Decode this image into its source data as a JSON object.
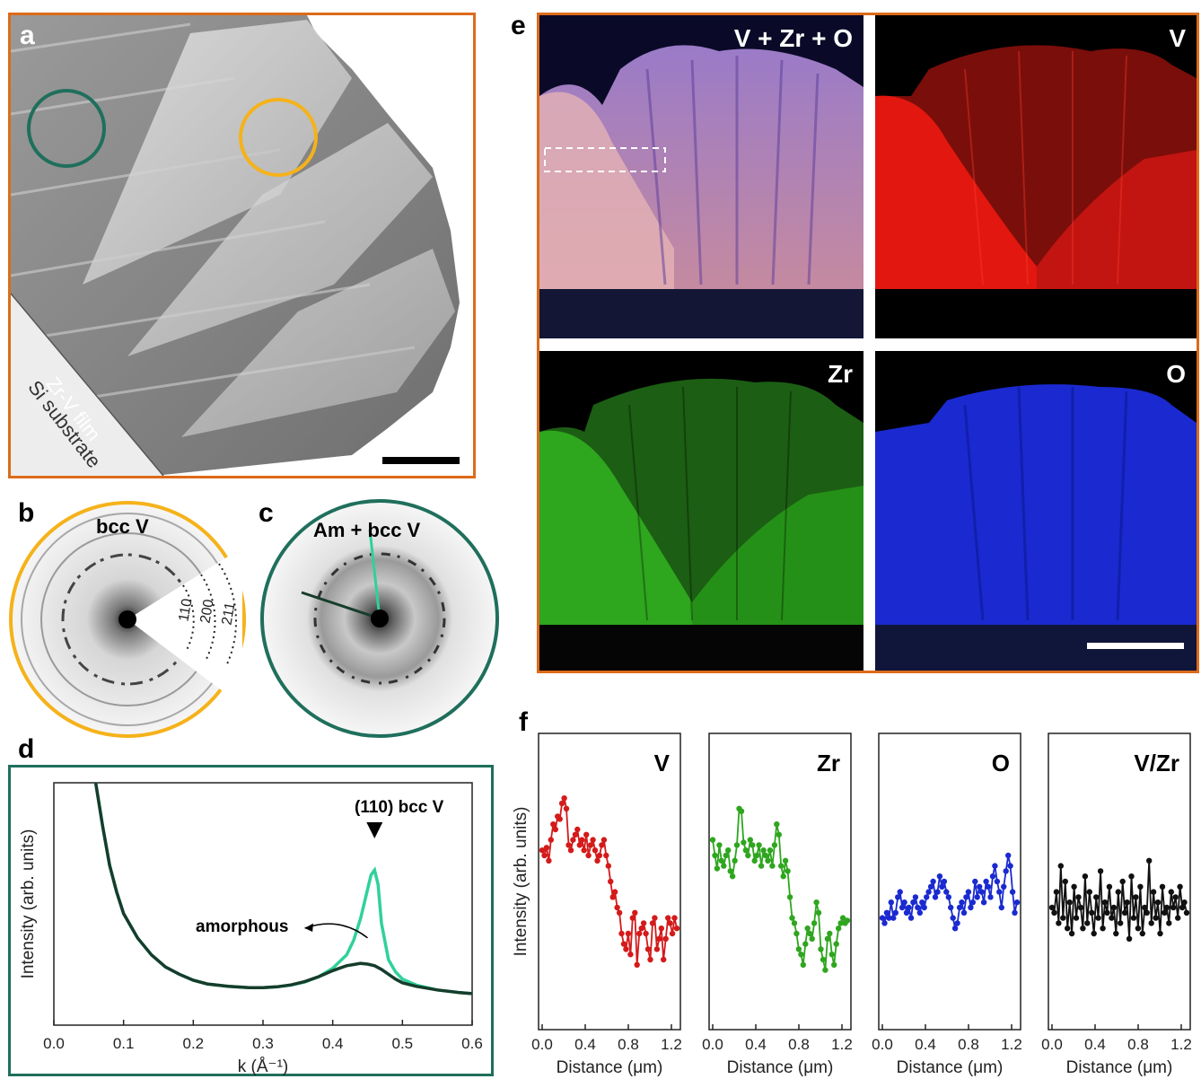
{
  "panels": {
    "a": {
      "label": "a",
      "film_label": "Zr-V film",
      "substrate_label": "Si substrate"
    },
    "b": {
      "label": "b",
      "title": "bcc V",
      "rings": [
        "110",
        "200",
        "211"
      ]
    },
    "c": {
      "label": "c",
      "title": "Am + bcc V"
    },
    "d": {
      "label": "d",
      "peak_label": "(110) bcc V",
      "amorphous_label": "amorphous"
    },
    "e": {
      "label": "e",
      "maps": [
        {
          "title": "V + Zr + O",
          "color": "#b47aa8"
        },
        {
          "title": "V",
          "color": "#e01a12"
        },
        {
          "title": "Zr",
          "color": "#2ea61e"
        },
        {
          "title": "O",
          "color": "#1a2ad0"
        }
      ]
    },
    "f": {
      "label": "f"
    }
  },
  "colors": {
    "orange_frame": "#dd6b1a",
    "teal_frame": "#1f6f5c",
    "yellow_circle": "#f5b21a",
    "teal_circle": "#1f6f5c",
    "crystalline_line": "#2fd19a",
    "amorphous_line": "#163d2c"
  },
  "chart_data": [
    {
      "type": "line",
      "panel": "d",
      "title": "",
      "xlabel": "k (Å⁻¹)",
      "ylabel": "Intensity (arb. units)",
      "xlim": [
        0.0,
        0.6
      ],
      "xticks": [
        "0.0",
        "0.1",
        "0.2",
        "0.3",
        "0.4",
        "0.5",
        "0.6"
      ],
      "annotations": [
        "(110) bcc V",
        "amorphous"
      ],
      "series": [
        {
          "color": "#2fd19a",
          "x": [
            0.06,
            0.07,
            0.08,
            0.09,
            0.1,
            0.12,
            0.14,
            0.16,
            0.18,
            0.2,
            0.22,
            0.25,
            0.28,
            0.3,
            0.32,
            0.34,
            0.36,
            0.38,
            0.4,
            0.42,
            0.43,
            0.44,
            0.45,
            0.455,
            0.46,
            0.465,
            0.47,
            0.48,
            0.49,
            0.5,
            0.52,
            0.55,
            0.58,
            0.6
          ],
          "y": [
            1.0,
            0.82,
            0.66,
            0.55,
            0.46,
            0.36,
            0.29,
            0.24,
            0.21,
            0.185,
            0.17,
            0.16,
            0.155,
            0.155,
            0.158,
            0.165,
            0.178,
            0.2,
            0.235,
            0.29,
            0.35,
            0.44,
            0.56,
            0.62,
            0.64,
            0.58,
            0.42,
            0.27,
            0.22,
            0.19,
            0.165,
            0.145,
            0.135,
            0.13
          ]
        },
        {
          "color": "#163d2c",
          "x": [
            0.06,
            0.07,
            0.08,
            0.09,
            0.1,
            0.12,
            0.14,
            0.16,
            0.18,
            0.2,
            0.22,
            0.25,
            0.28,
            0.3,
            0.32,
            0.34,
            0.36,
            0.38,
            0.4,
            0.42,
            0.43,
            0.44,
            0.45,
            0.46,
            0.47,
            0.48,
            0.49,
            0.5,
            0.52,
            0.55,
            0.58,
            0.6
          ],
          "y": [
            1.0,
            0.82,
            0.66,
            0.55,
            0.46,
            0.36,
            0.29,
            0.24,
            0.21,
            0.185,
            0.17,
            0.16,
            0.155,
            0.155,
            0.158,
            0.166,
            0.18,
            0.2,
            0.225,
            0.245,
            0.25,
            0.255,
            0.252,
            0.245,
            0.23,
            0.21,
            0.19,
            0.175,
            0.16,
            0.145,
            0.135,
            0.13
          ]
        }
      ]
    },
    {
      "type": "line",
      "panel": "f",
      "title": "V",
      "xlabel": "Distance (μm)",
      "ylabel": "Intensity (arb. units)",
      "xlim": [
        0.0,
        1.25
      ],
      "xticks": [
        "0.0",
        "0.4",
        "0.8",
        "1.2"
      ],
      "series": [
        {
          "name": "V",
          "color": "#d41a1a",
          "values": [
            0.62,
            0.6,
            0.63,
            0.58,
            0.66,
            0.72,
            0.7,
            0.75,
            0.74,
            0.8,
            0.82,
            0.78,
            0.64,
            0.62,
            0.66,
            0.68,
            0.7,
            0.64,
            0.66,
            0.62,
            0.68,
            0.6,
            0.64,
            0.66,
            0.62,
            0.58,
            0.6,
            0.64,
            0.66,
            0.6,
            0.56,
            0.5,
            0.44,
            0.46,
            0.4,
            0.38,
            0.3,
            0.26,
            0.24,
            0.3,
            0.22,
            0.36,
            0.38,
            0.18,
            0.3,
            0.32,
            0.34,
            0.3,
            0.24,
            0.2,
            0.34,
            0.36,
            0.24,
            0.28,
            0.32,
            0.2,
            0.28,
            0.36,
            0.34,
            0.3,
            0.36,
            0.32
          ]
        }
      ]
    },
    {
      "type": "line",
      "panel": "f",
      "title": "Zr",
      "xlabel": "Distance (μm)",
      "xlim": [
        0.0,
        1.25
      ],
      "xticks": [
        "0.0",
        "0.4",
        "0.8",
        "1.2"
      ],
      "series": [
        {
          "name": "Zr",
          "color": "#2ea61e",
          "values": [
            0.66,
            0.6,
            0.55,
            0.64,
            0.58,
            0.56,
            0.6,
            0.62,
            0.54,
            0.52,
            0.58,
            0.64,
            0.78,
            0.77,
            0.65,
            0.62,
            0.6,
            0.66,
            0.64,
            0.58,
            0.6,
            0.64,
            0.56,
            0.62,
            0.6,
            0.58,
            0.62,
            0.56,
            0.64,
            0.72,
            0.68,
            0.56,
            0.52,
            0.58,
            0.54,
            0.44,
            0.36,
            0.34,
            0.3,
            0.24,
            0.22,
            0.18,
            0.26,
            0.32,
            0.3,
            0.28,
            0.34,
            0.42,
            0.38,
            0.24,
            0.2,
            0.16,
            0.28,
            0.3,
            0.22,
            0.18,
            0.26,
            0.32,
            0.34,
            0.36,
            0.34,
            0.35
          ]
        }
      ]
    },
    {
      "type": "line",
      "panel": "f",
      "title": "O",
      "xlabel": "Distance (μm)",
      "xlim": [
        0.0,
        1.25
      ],
      "xticks": [
        "0.0",
        "0.4",
        "0.8",
        "1.2"
      ],
      "series": [
        {
          "name": "O",
          "color": "#1a2ad0",
          "values": [
            0.36,
            0.34,
            0.38,
            0.36,
            0.42,
            0.36,
            0.38,
            0.44,
            0.46,
            0.4,
            0.42,
            0.38,
            0.4,
            0.36,
            0.42,
            0.44,
            0.4,
            0.38,
            0.42,
            0.4,
            0.44,
            0.46,
            0.48,
            0.5,
            0.44,
            0.46,
            0.52,
            0.48,
            0.5,
            0.46,
            0.44,
            0.4,
            0.36,
            0.32,
            0.34,
            0.4,
            0.42,
            0.38,
            0.44,
            0.46,
            0.4,
            0.42,
            0.5,
            0.44,
            0.48,
            0.46,
            0.42,
            0.5,
            0.48,
            0.44,
            0.52,
            0.56,
            0.5,
            0.46,
            0.4,
            0.48,
            0.54,
            0.6,
            0.56,
            0.46,
            0.38,
            0.42
          ]
        }
      ]
    },
    {
      "type": "line",
      "panel": "f",
      "title": "V/Zr",
      "xlabel": "Distance (μm)",
      "xlim": [
        0.0,
        1.25
      ],
      "xticks": [
        "0.0",
        "0.4",
        "0.8",
        "1.2"
      ],
      "series": [
        {
          "name": "V/Zr",
          "color": "#111111",
          "values": [
            0.4,
            0.38,
            0.46,
            0.34,
            0.56,
            0.36,
            0.5,
            0.32,
            0.42,
            0.3,
            0.48,
            0.36,
            0.44,
            0.4,
            0.32,
            0.52,
            0.34,
            0.46,
            0.38,
            0.3,
            0.44,
            0.36,
            0.54,
            0.32,
            0.42,
            0.38,
            0.48,
            0.36,
            0.4,
            0.3,
            0.46,
            0.34,
            0.5,
            0.38,
            0.42,
            0.28,
            0.52,
            0.36,
            0.44,
            0.32,
            0.48,
            0.3,
            0.4,
            0.38,
            0.58,
            0.34,
            0.46,
            0.36,
            0.42,
            0.3,
            0.48,
            0.38,
            0.4,
            0.34,
            0.46,
            0.4,
            0.44,
            0.36,
            0.48,
            0.4,
            0.42,
            0.38
          ]
        }
      ]
    }
  ]
}
